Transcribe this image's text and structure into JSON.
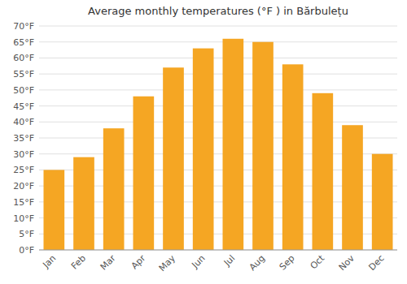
{
  "chart_data": {
    "type": "bar",
    "title": "Average monthly temperatures (°F ) in Bărbulețu",
    "categories": [
      "Jan",
      "Feb",
      "Mar",
      "Apr",
      "May",
      "Jun",
      "Jul",
      "Aug",
      "Sep",
      "Oct",
      "Nov",
      "Dec"
    ],
    "values": [
      25,
      29,
      38,
      48,
      57,
      63,
      66,
      65,
      58,
      49,
      39,
      30
    ],
    "color": "#F5A623",
    "ylim": [
      0,
      70
    ],
    "yticks": [
      {
        "value": 0,
        "label": "0°F"
      },
      {
        "value": 5,
        "label": "5°F"
      },
      {
        "value": 10,
        "label": "10°F"
      },
      {
        "value": 15,
        "label": "15°F"
      },
      {
        "value": 20,
        "label": "20°F"
      },
      {
        "value": 25,
        "label": "25°F"
      },
      {
        "value": 30,
        "label": "30°F"
      },
      {
        "value": 35,
        "label": "35°F"
      },
      {
        "value": 40,
        "label": "40°F"
      },
      {
        "value": 45,
        "label": "45°F"
      },
      {
        "value": 50,
        "label": "50°F"
      },
      {
        "value": 55,
        "label": "55°F"
      },
      {
        "value": 60,
        "label": "60°F"
      },
      {
        "value": 65,
        "label": "65°F"
      },
      {
        "value": 70,
        "label": "70°F"
      }
    ],
    "grid": true
  }
}
